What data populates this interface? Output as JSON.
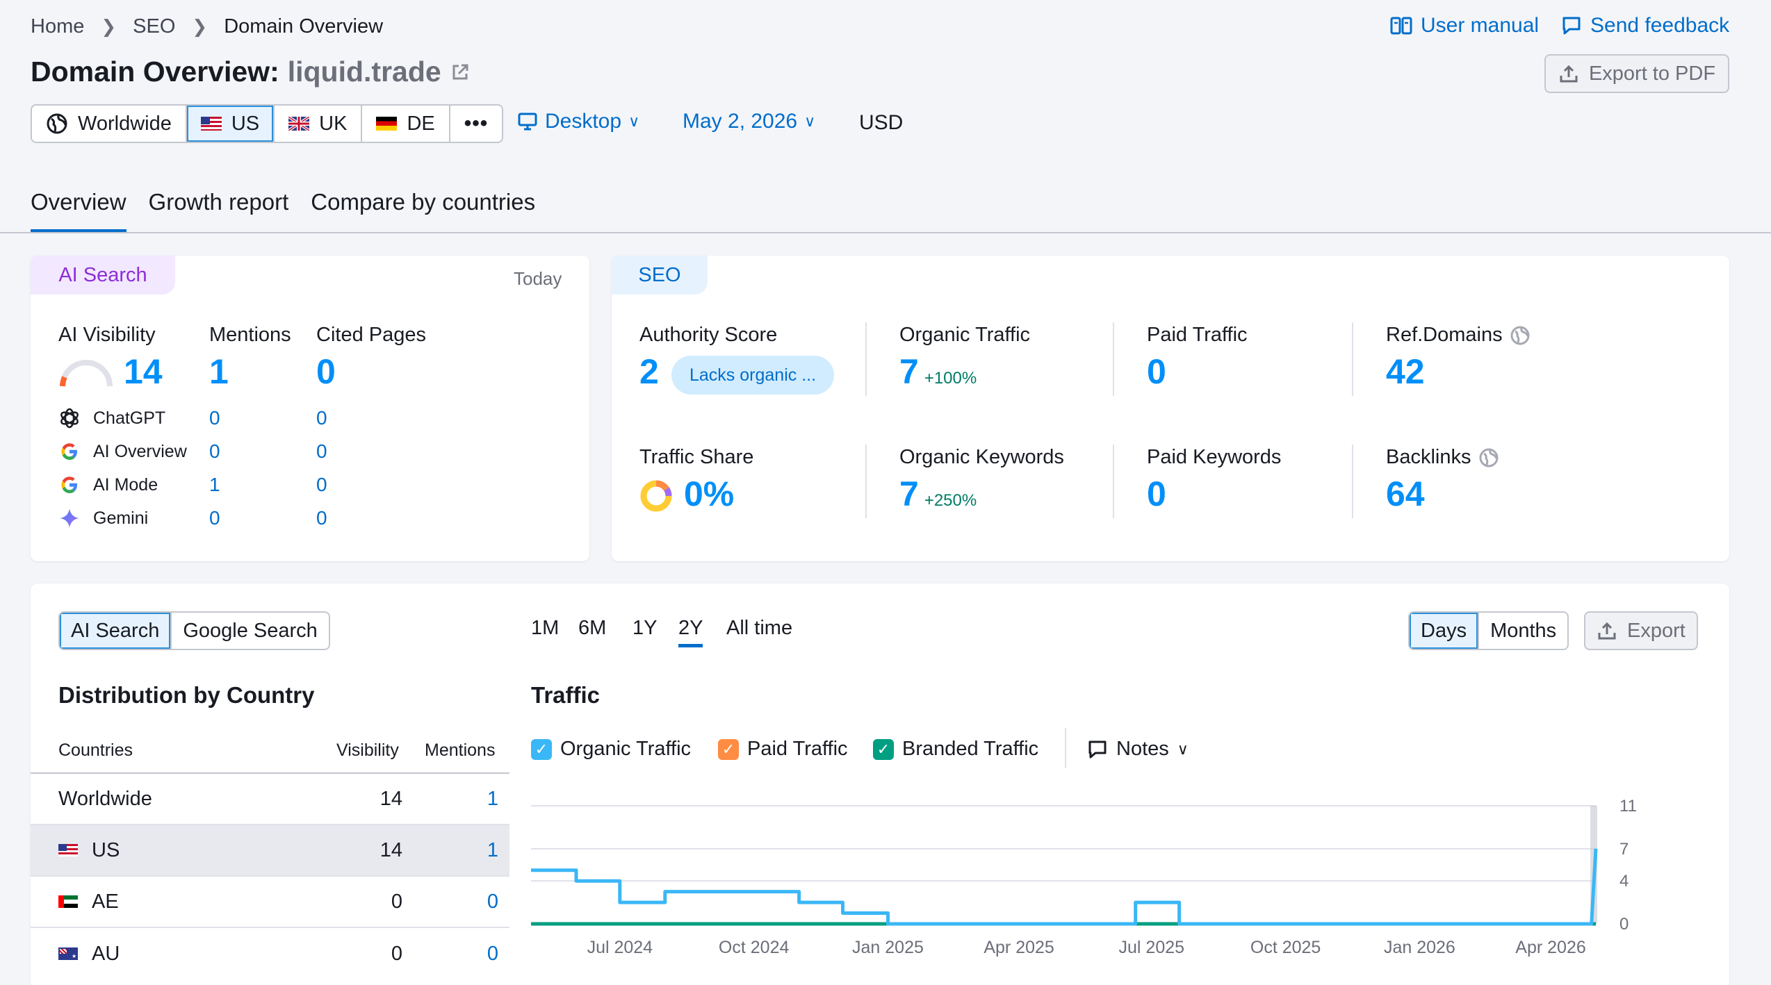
{
  "breadcrumb": [
    "Home",
    "SEO",
    "Domain Overview"
  ],
  "header": {
    "user_manual": "User manual",
    "send_feedback": "Send feedback",
    "title_prefix": "Domain Overview:",
    "domain": "liquid.trade",
    "export_pdf": "Export to PDF"
  },
  "countries": [
    {
      "label": "Worldwide",
      "icon": "globe-icon",
      "selected": false
    },
    {
      "label": "US",
      "icon": "us-flag-icon",
      "selected": true
    },
    {
      "label": "UK",
      "icon": "uk-flag-icon",
      "selected": false
    },
    {
      "label": "DE",
      "icon": "de-flag-icon",
      "selected": false
    }
  ],
  "device": "Desktop",
  "date": "May 2, 2026",
  "currency": "USD",
  "tabs": [
    "Overview",
    "Growth report",
    "Compare by countries"
  ],
  "ai_card": {
    "tag": "AI Search",
    "date_label": "Today",
    "col_visibility": "AI Visibility",
    "col_mentions": "Mentions",
    "col_cited": "Cited Pages",
    "visibility": "14",
    "mentions": "1",
    "cited": "0",
    "rows": [
      {
        "name": "ChatGPT",
        "mentions": "0",
        "cited": "0"
      },
      {
        "name": "AI Overview",
        "mentions": "0",
        "cited": "0"
      },
      {
        "name": "AI Mode",
        "mentions": "1",
        "cited": "0"
      },
      {
        "name": "Gemini",
        "mentions": "0",
        "cited": "0"
      }
    ]
  },
  "seo_card": {
    "tag": "SEO",
    "authority_label": "Authority Score",
    "authority_value": "2",
    "authority_badge": "Lacks organic ...",
    "organic_traffic_label": "Organic Traffic",
    "organic_traffic_value": "7",
    "organic_traffic_delta": "+100%",
    "paid_traffic_label": "Paid Traffic",
    "paid_traffic_value": "0",
    "ref_domains_label": "Ref.Domains",
    "ref_domains_value": "42",
    "traffic_share_label": "Traffic Share",
    "traffic_share_value": "0%",
    "organic_keywords_label": "Organic Keywords",
    "organic_keywords_value": "7",
    "organic_keywords_delta": "+250%",
    "paid_keywords_label": "Paid Keywords",
    "paid_keywords_value": "0",
    "backlinks_label": "Backlinks",
    "backlinks_value": "64"
  },
  "bottom": {
    "source_tabs": [
      "AI Search",
      "Google Search"
    ],
    "ranges": [
      "1M",
      "6M",
      "1Y",
      "2Y",
      "All time"
    ],
    "active_range": "2Y",
    "granularity": [
      "Days",
      "Months"
    ],
    "export": "Export",
    "distribution_title": "Distribution by Country",
    "table_headers": {
      "country": "Countries",
      "visibility": "Visibility",
      "mentions": "Mentions"
    },
    "table_rows": [
      {
        "country": "Worldwide",
        "visibility": "14",
        "mentions": "1",
        "flag": ""
      },
      {
        "country": "US",
        "visibility": "14",
        "mentions": "1",
        "flag": "us"
      },
      {
        "country": "AE",
        "visibility": "0",
        "mentions": "0",
        "flag": "ae"
      },
      {
        "country": "AU",
        "visibility": "0",
        "mentions": "0",
        "flag": "au"
      }
    ],
    "traffic_title": "Traffic",
    "legend": [
      {
        "name": "Organic Traffic",
        "color": "#3ab7f6"
      },
      {
        "name": "Paid Traffic",
        "color": "#ff8c43"
      },
      {
        "name": "Branded Traffic",
        "color": "#009f81"
      }
    ],
    "notes": "Notes"
  },
  "chart_data": {
    "type": "line",
    "x_ticks": [
      "Jul 2024",
      "Oct 2024",
      "Jan 2025",
      "Apr 2025",
      "Jul 2025",
      "Oct 2025",
      "Jan 2026",
      "Apr 2026"
    ],
    "y_ticks": [
      "0",
      "4",
      "7",
      "11"
    ],
    "ylim": [
      0,
      11
    ],
    "xlim": [
      "2024-05-01",
      "2026-05-02"
    ],
    "series": [
      {
        "name": "Organic Traffic",
        "color": "#3ab7f6",
        "points": [
          [
            "2024-05-01",
            5
          ],
          [
            "2024-06-01",
            5
          ],
          [
            "2024-06-01",
            4
          ],
          [
            "2024-07-01",
            4
          ],
          [
            "2024-07-01",
            2
          ],
          [
            "2024-08-01",
            2
          ],
          [
            "2024-08-01",
            3
          ],
          [
            "2024-11-01",
            3
          ],
          [
            "2024-11-01",
            2
          ],
          [
            "2024-12-01",
            2
          ],
          [
            "2024-12-01",
            1
          ],
          [
            "2025-01-01",
            1
          ],
          [
            "2025-01-01",
            0
          ],
          [
            "2025-06-20",
            0
          ],
          [
            "2025-06-20",
            2
          ],
          [
            "2025-07-20",
            2
          ],
          [
            "2025-07-20",
            0
          ],
          [
            "2026-04-29",
            0
          ],
          [
            "2026-05-02",
            7
          ]
        ]
      },
      {
        "name": "Branded Traffic",
        "color": "#009f81",
        "points": [
          [
            "2024-05-01",
            0
          ],
          [
            "2026-05-02",
            0
          ]
        ]
      }
    ]
  }
}
